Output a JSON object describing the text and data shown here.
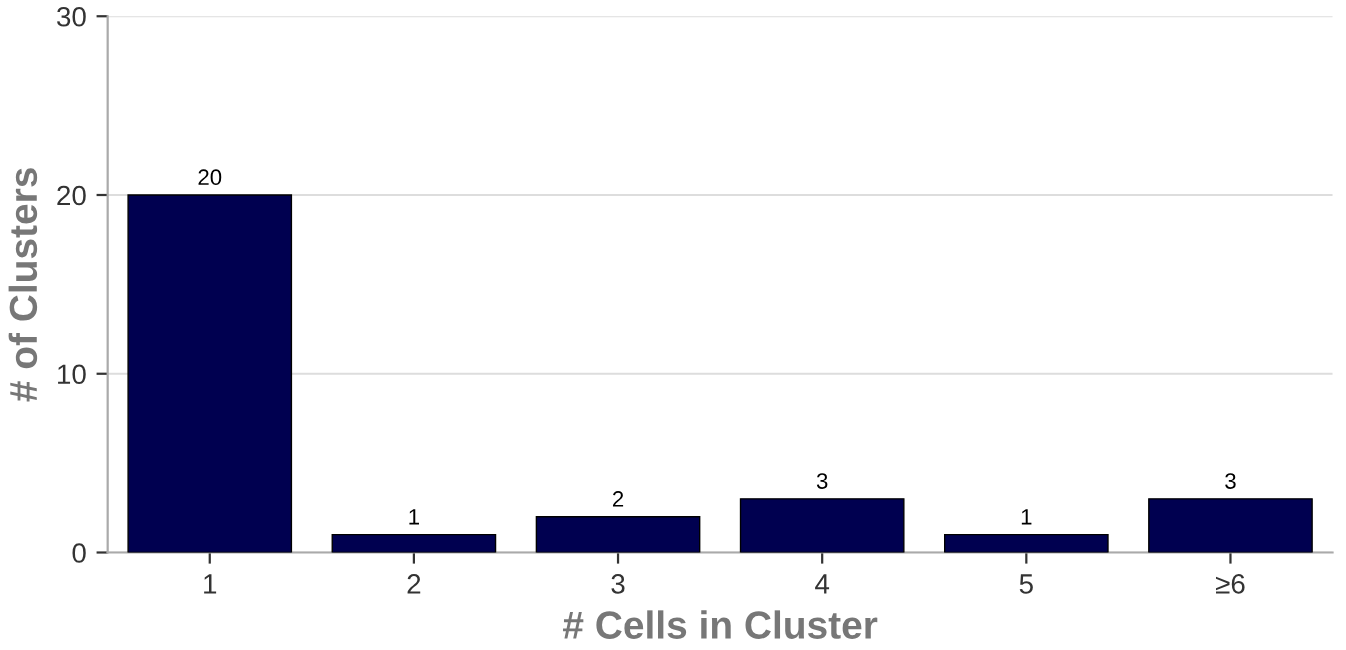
{
  "chart_data": {
    "type": "bar",
    "xlabel": "# Cells in Cluster",
    "ylabel": "# of Clusters",
    "categories": [
      "1",
      "2",
      "3",
      "4",
      "5",
      "≥6"
    ],
    "values": [
      20,
      1,
      2,
      3,
      1,
      3
    ],
    "color": "#000050",
    "ylim": [
      0,
      30
    ],
    "yticks": [
      0,
      10,
      20,
      30
    ],
    "grid": "y",
    "data_labels": true
  }
}
